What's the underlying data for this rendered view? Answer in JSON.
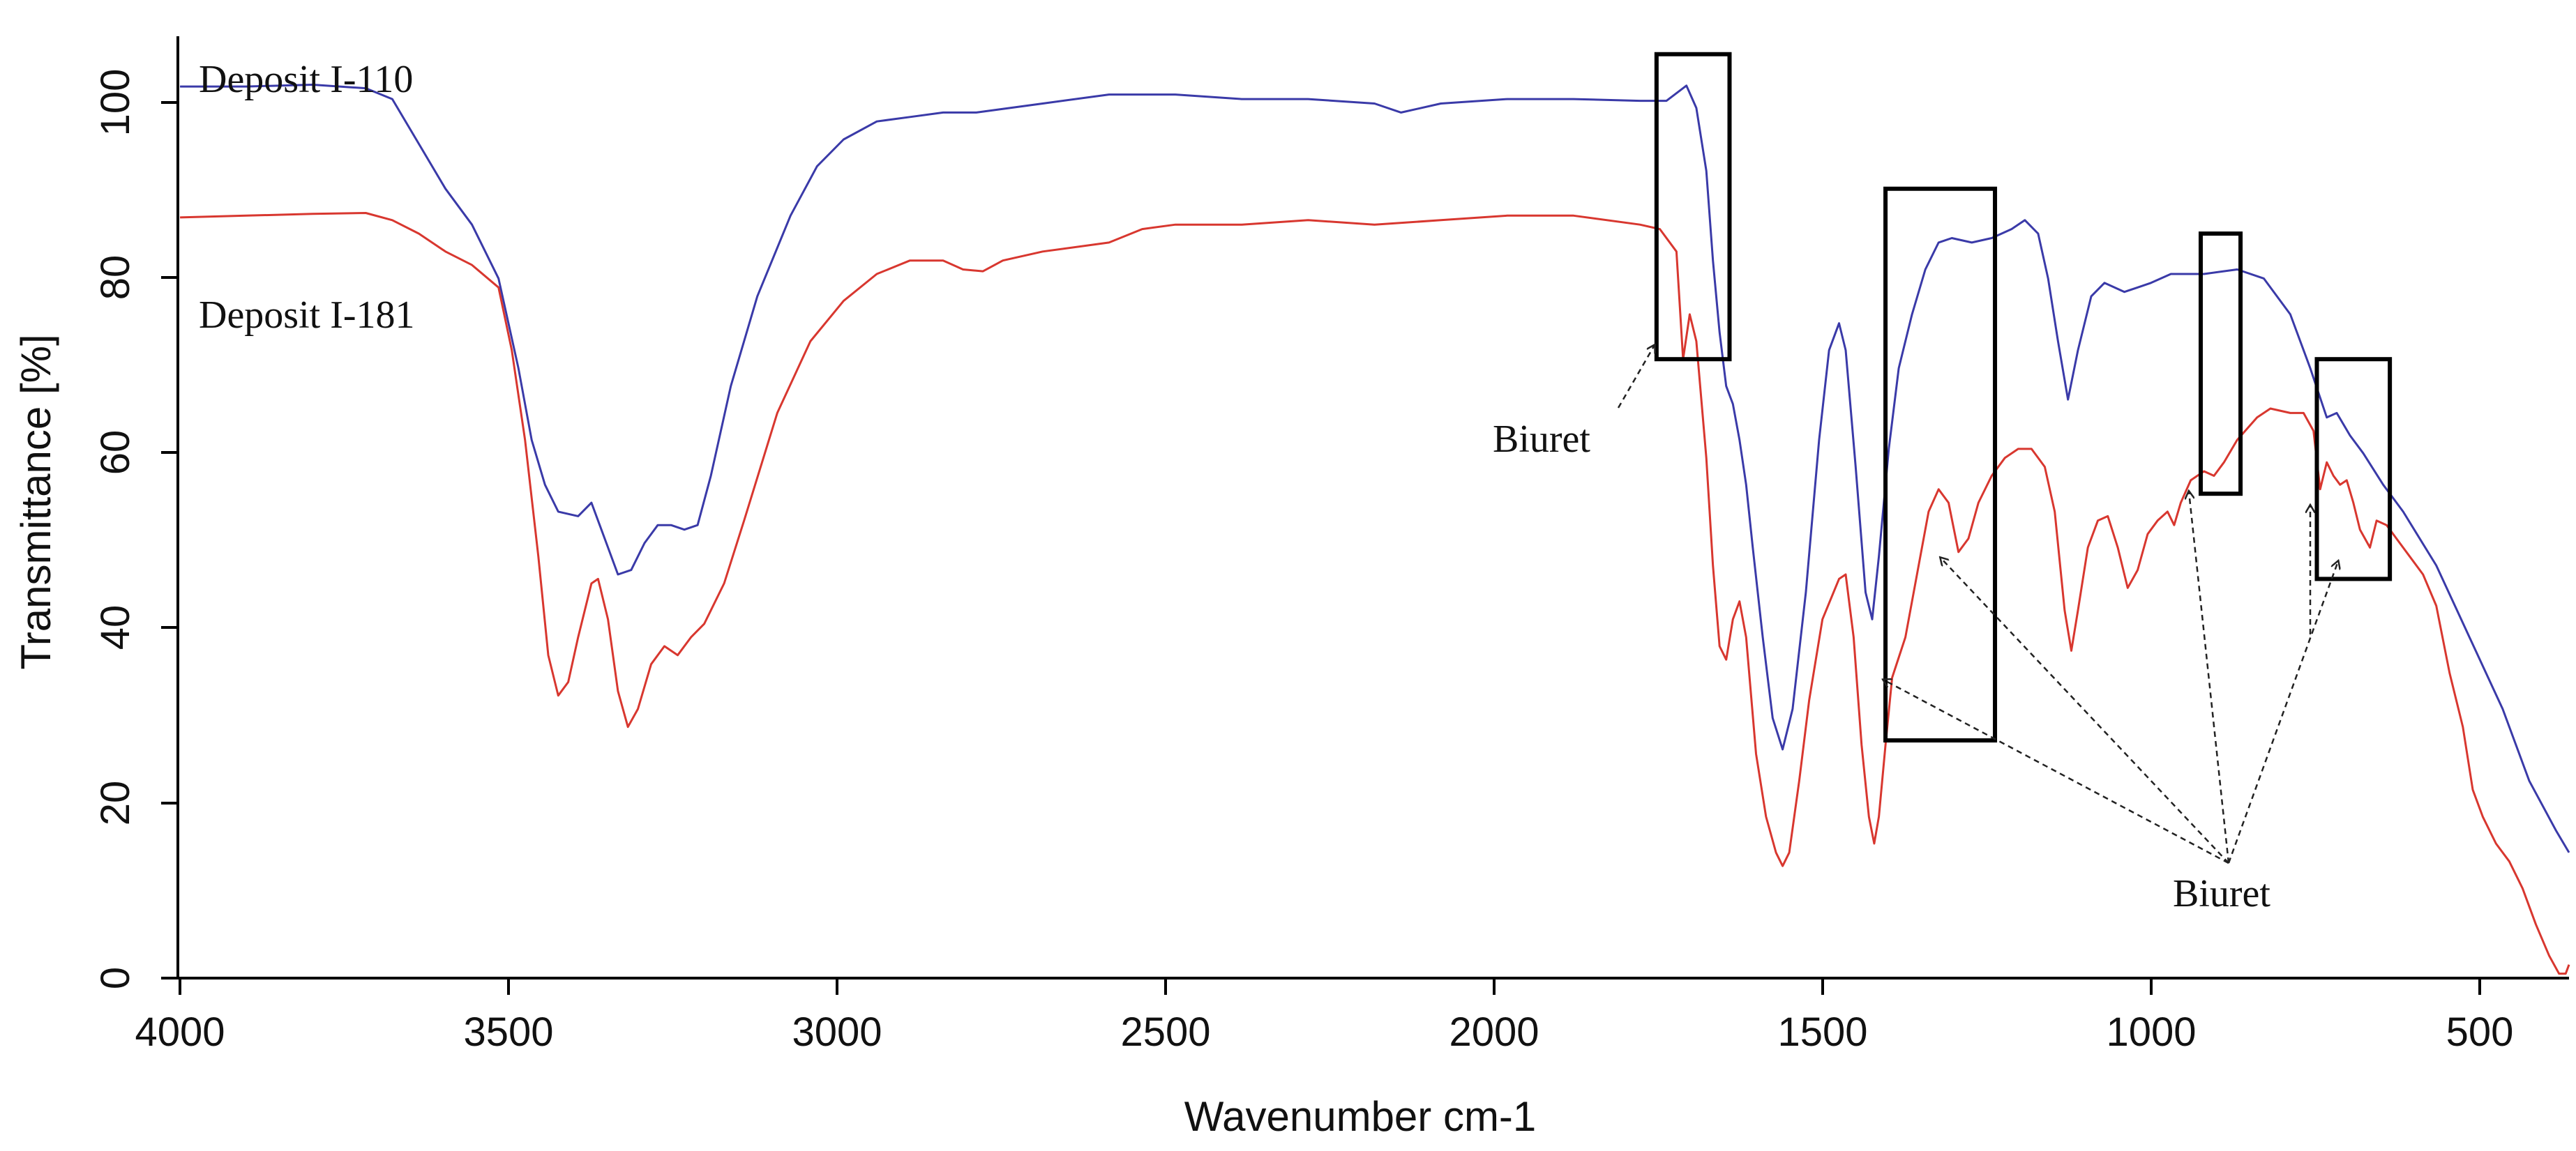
{
  "chart_data": {
    "type": "line",
    "title": "",
    "xlabel": "Wavenumber cm-1",
    "ylabel": "Transmittance [%]",
    "xlim": [
      4000,
      400
    ],
    "ylim": [
      0,
      105
    ],
    "x_reversed": true,
    "x_ticks": [
      4000,
      3500,
      3000,
      2500,
      2000,
      1500,
      1000,
      500
    ],
    "y_ticks": [
      0,
      20,
      40,
      60,
      80,
      100
    ],
    "grid": false,
    "series": [
      {
        "name": "Deposit I-110",
        "color": "#3a3aa8",
        "points": [
          [
            4000,
            99.4
          ],
          [
            3900,
            99.4
          ],
          [
            3800,
            99.6
          ],
          [
            3720,
            99.2
          ],
          [
            3680,
            98.0
          ],
          [
            3640,
            93.0
          ],
          [
            3600,
            88.0
          ],
          [
            3560,
            84.0
          ],
          [
            3520,
            78.0
          ],
          [
            3490,
            68.0
          ],
          [
            3470,
            60.0
          ],
          [
            3450,
            55.0
          ],
          [
            3430,
            52.0
          ],
          [
            3400,
            51.5
          ],
          [
            3380,
            53.0
          ],
          [
            3360,
            49.0
          ],
          [
            3340,
            45.0
          ],
          [
            3320,
            45.5
          ],
          [
            3300,
            48.5
          ],
          [
            3280,
            50.5
          ],
          [
            3260,
            50.5
          ],
          [
            3240,
            50.0
          ],
          [
            3220,
            50.5
          ],
          [
            3200,
            56.0
          ],
          [
            3170,
            66.0
          ],
          [
            3130,
            76.0
          ],
          [
            3080,
            85.0
          ],
          [
            3040,
            90.5
          ],
          [
            3000,
            93.5
          ],
          [
            2950,
            95.5
          ],
          [
            2900,
            96.0
          ],
          [
            2850,
            96.5
          ],
          [
            2800,
            96.5
          ],
          [
            2700,
            97.5
          ],
          [
            2600,
            98.5
          ],
          [
            2500,
            98.5
          ],
          [
            2400,
            98.0
          ],
          [
            2300,
            98.0
          ],
          [
            2200,
            97.5
          ],
          [
            2160,
            96.5
          ],
          [
            2100,
            97.5
          ],
          [
            2000,
            98.0
          ],
          [
            1900,
            98.0
          ],
          [
            1800,
            97.8
          ],
          [
            1760,
            97.8
          ],
          [
            1730,
            99.5
          ],
          [
            1715,
            97.0
          ],
          [
            1700,
            90.0
          ],
          [
            1690,
            80.0
          ],
          [
            1680,
            72.0
          ],
          [
            1670,
            66.0
          ],
          [
            1660,
            64.0
          ],
          [
            1650,
            60.0
          ],
          [
            1640,
            55.0
          ],
          [
            1630,
            48.0
          ],
          [
            1615,
            38.0
          ],
          [
            1600,
            29.0
          ],
          [
            1585,
            25.5
          ],
          [
            1570,
            30.0
          ],
          [
            1550,
            43.0
          ],
          [
            1530,
            60.0
          ],
          [
            1515,
            70.0
          ],
          [
            1500,
            73.0
          ],
          [
            1490,
            70.0
          ],
          [
            1475,
            57.0
          ],
          [
            1460,
            43.0
          ],
          [
            1450,
            40.0
          ],
          [
            1440,
            47.0
          ],
          [
            1425,
            59.0
          ],
          [
            1410,
            68.0
          ],
          [
            1390,
            74.0
          ],
          [
            1370,
            79.0
          ],
          [
            1350,
            82.0
          ],
          [
            1330,
            82.5
          ],
          [
            1300,
            82.0
          ],
          [
            1270,
            82.5
          ],
          [
            1240,
            83.5
          ],
          [
            1220,
            84.5
          ],
          [
            1200,
            83.0
          ],
          [
            1185,
            78.0
          ],
          [
            1170,
            71.0
          ],
          [
            1155,
            64.5
          ],
          [
            1140,
            70.0
          ],
          [
            1120,
            76.0
          ],
          [
            1100,
            77.5
          ],
          [
            1070,
            76.5
          ],
          [
            1050,
            77.0
          ],
          [
            1030,
            77.5
          ],
          [
            1000,
            78.5
          ],
          [
            950,
            78.5
          ],
          [
            900,
            79.0
          ],
          [
            860,
            78.0
          ],
          [
            820,
            74.0
          ],
          [
            790,
            68.0
          ],
          [
            765,
            62.5
          ],
          [
            750,
            63.0
          ],
          [
            730,
            60.5
          ],
          [
            710,
            58.5
          ],
          [
            680,
            55.0
          ],
          [
            650,
            52.0
          ],
          [
            600,
            46.0
          ],
          [
            550,
            38.0
          ],
          [
            500,
            30.0
          ],
          [
            460,
            22.0
          ],
          [
            420,
            16.5
          ],
          [
            400,
            14.0
          ]
        ]
      },
      {
        "name": "Deposit I-181",
        "color": "#d8372f",
        "points": [
          [
            4000,
            84.8
          ],
          [
            3900,
            85.0
          ],
          [
            3800,
            85.2
          ],
          [
            3720,
            85.3
          ],
          [
            3680,
            84.5
          ],
          [
            3640,
            83.0
          ],
          [
            3600,
            81.0
          ],
          [
            3560,
            79.5
          ],
          [
            3520,
            77.0
          ],
          [
            3500,
            70.0
          ],
          [
            3480,
            60.0
          ],
          [
            3460,
            47.0
          ],
          [
            3445,
            36.0
          ],
          [
            3430,
            31.5
          ],
          [
            3415,
            33.0
          ],
          [
            3400,
            38.0
          ],
          [
            3380,
            44.0
          ],
          [
            3370,
            44.5
          ],
          [
            3355,
            40.0
          ],
          [
            3340,
            32.0
          ],
          [
            3325,
            28.0
          ],
          [
            3310,
            30.0
          ],
          [
            3290,
            35.0
          ],
          [
            3270,
            37.0
          ],
          [
            3250,
            36.0
          ],
          [
            3230,
            38.0
          ],
          [
            3210,
            39.5
          ],
          [
            3180,
            44.0
          ],
          [
            3150,
            51.0
          ],
          [
            3100,
            63.0
          ],
          [
            3050,
            71.0
          ],
          [
            3000,
            75.5
          ],
          [
            2950,
            78.5
          ],
          [
            2900,
            80.0
          ],
          [
            2850,
            80.0
          ],
          [
            2820,
            79.0
          ],
          [
            2790,
            78.8
          ],
          [
            2760,
            80.0
          ],
          [
            2700,
            81.0
          ],
          [
            2600,
            82.0
          ],
          [
            2550,
            83.5
          ],
          [
            2500,
            84.0
          ],
          [
            2400,
            84.0
          ],
          [
            2300,
            84.5
          ],
          [
            2200,
            84.0
          ],
          [
            2100,
            84.5
          ],
          [
            2000,
            85.0
          ],
          [
            1900,
            85.0
          ],
          [
            1800,
            84.0
          ],
          [
            1770,
            83.5
          ],
          [
            1745,
            81.0
          ],
          [
            1735,
            69.0
          ],
          [
            1725,
            74.0
          ],
          [
            1715,
            71.0
          ],
          [
            1700,
            58.0
          ],
          [
            1690,
            46.0
          ],
          [
            1680,
            37.0
          ],
          [
            1670,
            35.5
          ],
          [
            1660,
            40.0
          ],
          [
            1650,
            42.0
          ],
          [
            1640,
            38.0
          ],
          [
            1625,
            25.0
          ],
          [
            1610,
            18.0
          ],
          [
            1595,
            14.0
          ],
          [
            1585,
            12.5
          ],
          [
            1575,
            14.0
          ],
          [
            1560,
            22.0
          ],
          [
            1545,
            31.0
          ],
          [
            1525,
            40.0
          ],
          [
            1500,
            44.5
          ],
          [
            1490,
            45.0
          ],
          [
            1478,
            38.0
          ],
          [
            1466,
            26.0
          ],
          [
            1455,
            18.0
          ],
          [
            1447,
            15.0
          ],
          [
            1440,
            18.0
          ],
          [
            1430,
            26.0
          ],
          [
            1420,
            33.5
          ],
          [
            1400,
            38.0
          ],
          [
            1380,
            46.0
          ],
          [
            1365,
            52.0
          ],
          [
            1350,
            54.5
          ],
          [
            1335,
            53.0
          ],
          [
            1320,
            47.5
          ],
          [
            1305,
            49.0
          ],
          [
            1290,
            53.0
          ],
          [
            1270,
            56.0
          ],
          [
            1250,
            58.0
          ],
          [
            1230,
            59.0
          ],
          [
            1210,
            59.0
          ],
          [
            1190,
            57.0
          ],
          [
            1175,
            52.0
          ],
          [
            1160,
            41.0
          ],
          [
            1150,
            36.5
          ],
          [
            1140,
            41.0
          ],
          [
            1125,
            48.0
          ],
          [
            1110,
            51.0
          ],
          [
            1095,
            51.5
          ],
          [
            1080,
            48.0
          ],
          [
            1065,
            43.5
          ],
          [
            1050,
            45.5
          ],
          [
            1035,
            49.5
          ],
          [
            1020,
            51.0
          ],
          [
            1005,
            52.0
          ],
          [
            995,
            50.5
          ],
          [
            985,
            53.0
          ],
          [
            970,
            55.5
          ],
          [
            950,
            56.5
          ],
          [
            935,
            56.0
          ],
          [
            920,
            57.5
          ],
          [
            900,
            60.0
          ],
          [
            870,
            62.5
          ],
          [
            850,
            63.5
          ],
          [
            820,
            63.0
          ],
          [
            800,
            63.0
          ],
          [
            785,
            61.0
          ],
          [
            775,
            54.5
          ],
          [
            765,
            57.5
          ],
          [
            755,
            56.0
          ],
          [
            745,
            55.0
          ],
          [
            735,
            55.5
          ],
          [
            725,
            53.0
          ],
          [
            715,
            50.0
          ],
          [
            700,
            48.0
          ],
          [
            690,
            51.0
          ],
          [
            675,
            50.5
          ],
          [
            660,
            49.0
          ],
          [
            640,
            47.0
          ],
          [
            620,
            45.0
          ],
          [
            600,
            41.5
          ],
          [
            580,
            34.0
          ],
          [
            560,
            28.0
          ],
          [
            545,
            21.0
          ],
          [
            530,
            18.0
          ],
          [
            510,
            15.0
          ],
          [
            490,
            13.0
          ],
          [
            470,
            10.0
          ],
          [
            450,
            6.0
          ],
          [
            430,
            2.5
          ],
          [
            415,
            0.5
          ],
          [
            405,
            0.5
          ],
          [
            400,
            1.5
          ]
        ]
      }
    ],
    "annotations": {
      "series_label_i110": "Deposit I-110",
      "series_label_i181": "Deposit I-181",
      "biuret_label_1": "Biuret",
      "biuret_label_2": "Biuret",
      "boxes": [
        {
          "x_from": 1775,
          "x_to": 1665,
          "y_from": 69,
          "y_to": 103
        },
        {
          "x_from": 1430,
          "x_to": 1265,
          "y_from": 26.5,
          "y_to": 88
        },
        {
          "x_from": 955,
          "x_to": 895,
          "y_from": 54,
          "y_to": 83
        },
        {
          "x_from": 780,
          "x_to": 670,
          "y_from": 44.5,
          "y_to": 69
        }
      ]
    }
  }
}
